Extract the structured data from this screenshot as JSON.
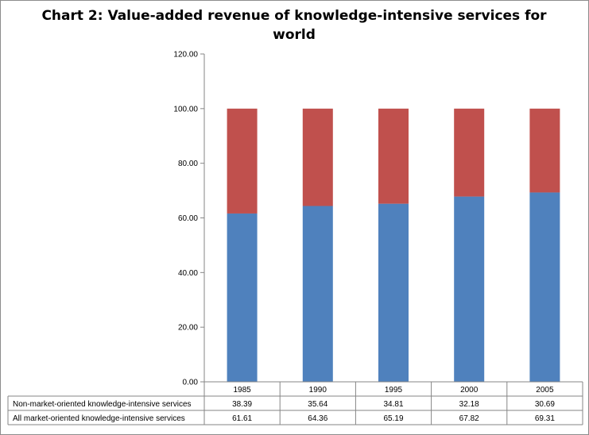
{
  "chart_data": {
    "type": "bar",
    "stacked": true,
    "title": "Chart 2:  Value-added revenue of knowledge-intensive services for world",
    "categories": [
      "1985",
      "1990",
      "1995",
      "2000",
      "2005"
    ],
    "series": [
      {
        "name": "All market-oriented knowledge-intensive services",
        "values": [
          61.61,
          64.36,
          65.19,
          67.82,
          69.31
        ],
        "color": "#4F81BD",
        "labels": [
          "61.61",
          "64.36",
          "65.19",
          "67.82",
          "69.31"
        ]
      },
      {
        "name": "Non-market-oriented knowledge-intensive services",
        "values": [
          38.39,
          35.64,
          34.81,
          32.18,
          30.69
        ],
        "color": "#C0504D",
        "labels": [
          "38.39",
          "35.64",
          "34.81",
          "32.18",
          "30.69"
        ]
      }
    ],
    "ylim": [
      0,
      120
    ],
    "yticks": [
      "0.00",
      "20.00",
      "40.00",
      "60.00",
      "80.00",
      "100.00",
      "120.00"
    ],
    "grid": false,
    "data_table": true,
    "table_row_order": [
      "Non-market-oriented knowledge-intensive services",
      "All market-oriented knowledge-intensive services"
    ]
  }
}
